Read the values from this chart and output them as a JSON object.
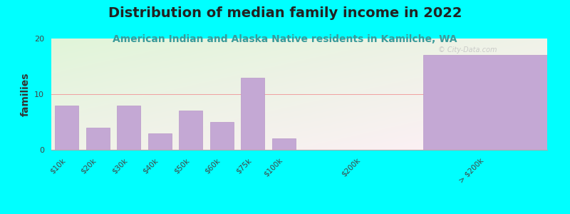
{
  "title": "Distribution of median family income in 2022",
  "subtitle": "American Indian and Alaska Native residents in Kamilche, WA",
  "ylabel": "families",
  "background_color": "#00FFFF",
  "bar_color": "#C4A8D4",
  "bar_edge_color": "#b898c8",
  "watermark": "© City-Data.com",
  "categories": [
    "$10k",
    "$20k",
    "$30k",
    "$40k",
    "$50k",
    "$60k",
    "$75k",
    "$100k",
    "$200k",
    "> $200k"
  ],
  "values": [
    8,
    4,
    8,
    3,
    7,
    5,
    13,
    2,
    0,
    17
  ],
  "ylim": [
    0,
    20
  ],
  "yticks": [
    0,
    10,
    20
  ],
  "title_fontsize": 14,
  "subtitle_fontsize": 10,
  "subtitle_color": "#3a9a9a",
  "ylabel_fontsize": 10
}
